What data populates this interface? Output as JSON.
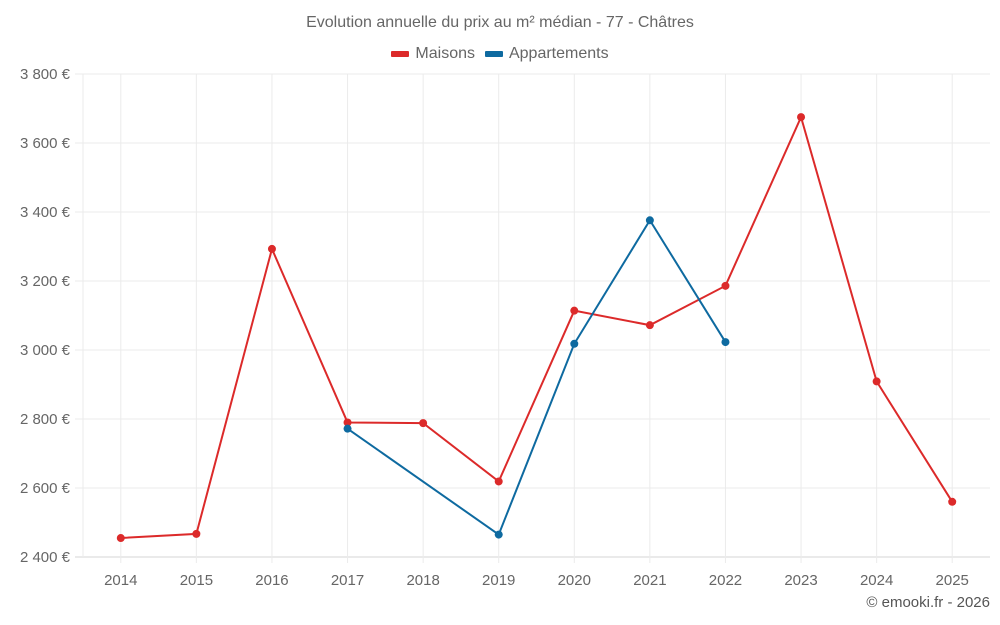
{
  "chart_data": {
    "type": "line",
    "title": "Evolution annuelle du prix au m² médian - 77 - Châtres",
    "xlabel": "",
    "ylabel": "",
    "categories": [
      "2014",
      "2015",
      "2016",
      "2017",
      "2018",
      "2019",
      "2020",
      "2021",
      "2022",
      "2023",
      "2024",
      "2025"
    ],
    "ylim": [
      2400,
      3800
    ],
    "yticks": [
      2400,
      2600,
      2800,
      3000,
      3200,
      3400,
      3600,
      3800
    ],
    "ytick_labels": [
      "2 400 €",
      "2 600 €",
      "2 800 €",
      "3 000 €",
      "3 200 €",
      "3 400 €",
      "3 600 €",
      "3 800 €"
    ],
    "grid": true,
    "legend_position": "top",
    "series": [
      {
        "name": "Maisons",
        "color": "#dc2a2a",
        "values": [
          2455,
          2467,
          3293,
          2790,
          2788,
          2619,
          3114,
          3072,
          3186,
          3675,
          2909,
          2560
        ]
      },
      {
        "name": "Appartements",
        "color": "#0e6aa0",
        "values": [
          null,
          null,
          null,
          2772,
          null,
          2465,
          3018,
          3376,
          3023,
          null,
          null,
          null
        ]
      }
    ]
  },
  "credit": "© emooki.fr - 2026"
}
